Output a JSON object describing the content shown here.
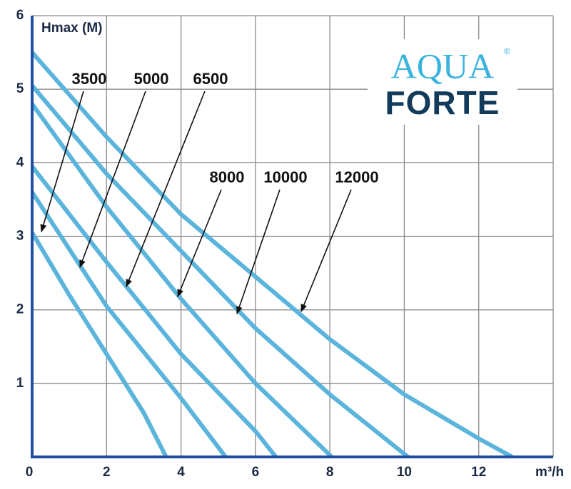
{
  "chart_data": {
    "type": "line",
    "y_label": "Hmax (M)",
    "x_label": "m³/h",
    "xlim": [
      0,
      14
    ],
    "ylim": [
      0,
      6
    ],
    "xticks": [
      0,
      2,
      4,
      6,
      8,
      10,
      12
    ],
    "yticks": [
      0,
      1,
      2,
      3,
      4,
      5,
      6
    ],
    "grid": true,
    "line_color": "#5ab4dc",
    "grid_color": "#8a8a8a",
    "axis_color": "#1f4f9e",
    "series": [
      {
        "name": "3500",
        "x": [
          0,
          1,
          2,
          3,
          3.6
        ],
        "values": [
          3.05,
          2.2,
          1.4,
          0.6,
          0
        ]
      },
      {
        "name": "5000",
        "x": [
          0,
          2,
          4,
          5.2
        ],
        "values": [
          3.6,
          2.05,
          0.8,
          0
        ]
      },
      {
        "name": "6500",
        "x": [
          0,
          2,
          4,
          6,
          6.55
        ],
        "values": [
          3.95,
          2.65,
          1.4,
          0.35,
          0
        ]
      },
      {
        "name": "8000",
        "x": [
          0,
          2,
          4,
          6,
          8.05
        ],
        "values": [
          4.8,
          3.4,
          2.15,
          1.0,
          0
        ]
      },
      {
        "name": "10000",
        "x": [
          0,
          2,
          4,
          6,
          8,
          10.1
        ],
        "values": [
          5.05,
          3.85,
          2.8,
          1.75,
          0.85,
          0
        ]
      },
      {
        "name": "12000",
        "x": [
          0,
          2,
          4,
          6,
          8,
          10,
          12,
          12.9
        ],
        "values": [
          5.5,
          4.35,
          3.3,
          2.45,
          1.6,
          0.85,
          0.25,
          0
        ]
      }
    ],
    "logo": {
      "line1": "AQUA",
      "line2": "FORTE",
      "mark": "®"
    }
  }
}
